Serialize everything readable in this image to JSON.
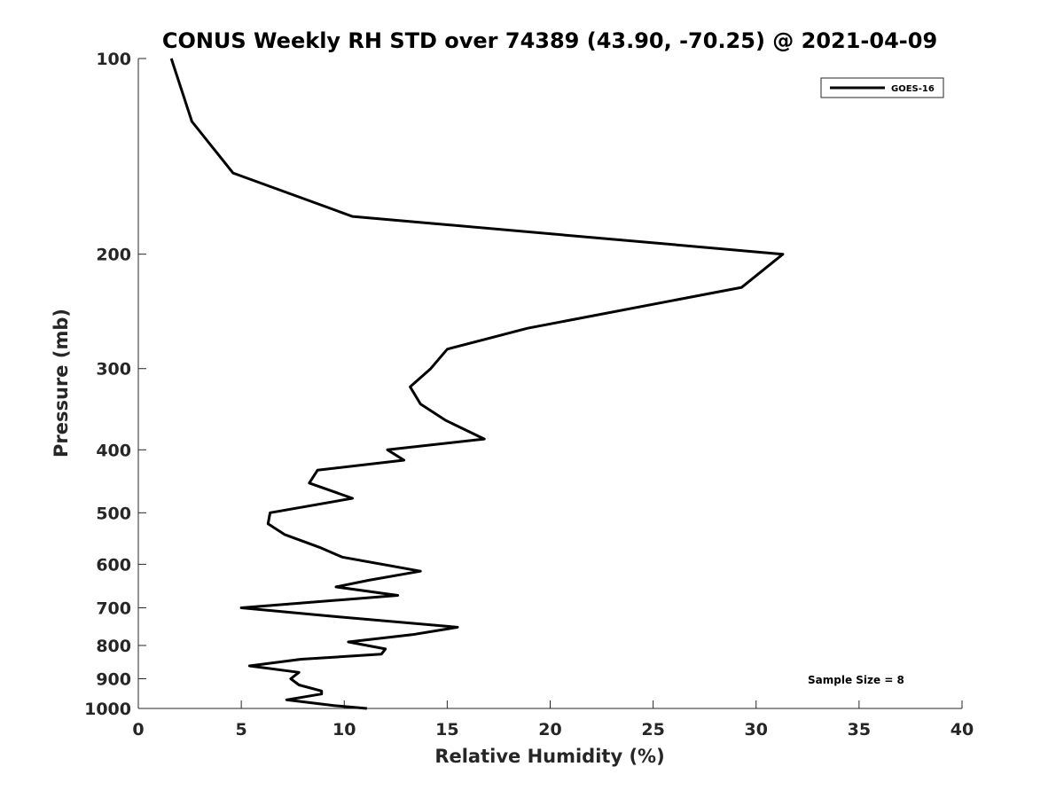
{
  "chart_data": {
    "type": "line",
    "title": "CONUS Weekly RH STD over 74389 (43.90, -70.25) @ 2021-04-09",
    "xlabel": "Relative Humidity (%)",
    "ylabel": "Pressure (mb)",
    "xlim": [
      0,
      40
    ],
    "ylim": [
      100,
      1000
    ],
    "y_scale": "log",
    "y_reversed": true,
    "x_ticks": [
      "0",
      "5",
      "10",
      "15",
      "20",
      "25",
      "30",
      "35",
      "40"
    ],
    "y_ticks": [
      "100",
      "200",
      "300",
      "400",
      "500",
      "600",
      "700",
      "800",
      "900",
      "1000"
    ],
    "grid": false,
    "legend_position": "top-right",
    "annotation": "Sample Size = 8",
    "series": [
      {
        "name": "GOES-16",
        "color": "#000000",
        "points": [
          [
            1.6,
            100
          ],
          [
            2.6,
            125
          ],
          [
            4.6,
            150
          ],
          [
            10.4,
            175
          ],
          [
            31.3,
            200
          ],
          [
            29.3,
            225
          ],
          [
            18.9,
            260
          ],
          [
            15.0,
            280
          ],
          [
            14.2,
            300
          ],
          [
            13.2,
            320
          ],
          [
            13.7,
            340
          ],
          [
            14.9,
            360
          ],
          [
            16.8,
            385
          ],
          [
            12.1,
            400
          ],
          [
            12.9,
            415
          ],
          [
            8.7,
            430
          ],
          [
            8.3,
            450
          ],
          [
            10.4,
            475
          ],
          [
            6.4,
            500
          ],
          [
            6.3,
            520
          ],
          [
            7.1,
            540
          ],
          [
            8.8,
            565
          ],
          [
            9.9,
            585
          ],
          [
            13.7,
            615
          ],
          [
            11.2,
            635
          ],
          [
            9.6,
            650
          ],
          [
            12.6,
            670
          ],
          [
            5.0,
            700
          ],
          [
            9.1,
            720
          ],
          [
            15.5,
            750
          ],
          [
            13.3,
            770
          ],
          [
            10.2,
            790
          ],
          [
            12.0,
            810
          ],
          [
            11.8,
            825
          ],
          [
            7.9,
            840
          ],
          [
            5.4,
            860
          ],
          [
            7.8,
            880
          ],
          [
            7.4,
            900
          ],
          [
            7.8,
            920
          ],
          [
            8.9,
            940
          ],
          [
            8.9,
            950
          ],
          [
            7.2,
            970
          ],
          [
            9.5,
            990
          ],
          [
            11.1,
            1000
          ]
        ]
      }
    ]
  }
}
